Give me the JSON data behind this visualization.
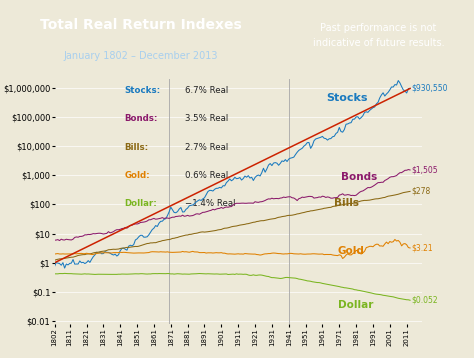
{
  "title": "Total Real Return Indexes",
  "subtitle": "January 1802 – December 2013",
  "disclaimer": "Past performance is not\nindicative of future results.",
  "years_start": 1802,
  "years_end": 2013,
  "legend_entries": [
    {
      "label": "Stocks:",
      "rate": "6.7% Real",
      "color": "#1a7abf"
    },
    {
      "label": "Bonds:",
      "rate": "3.5% Real",
      "color": "#8b1a6b"
    },
    {
      "label": "Bills:",
      "rate": "2.7% Real",
      "color": "#8b6914"
    },
    {
      "label": "Gold:",
      "rate": "0.6% Real",
      "color": "#e08000"
    },
    {
      "label": "Dollar:",
      "rate": "−1.4% Real",
      "color": "#7ab520"
    }
  ],
  "series": {
    "stocks": {
      "color": "#1a7abf",
      "end_value": "$930,550"
    },
    "stocks_trend": {
      "color": "#cc2200"
    },
    "bonds": {
      "color": "#8b1a6b",
      "end_value": "$1,505"
    },
    "bills": {
      "color": "#8b6914",
      "end_value": "$278"
    },
    "gold": {
      "color": "#e08000",
      "end_value": "$3.21"
    },
    "dollar": {
      "color": "#7ab520",
      "end_value": "$0.052"
    }
  },
  "vlines": [
    1870,
    1941
  ],
  "bg_color": "#ede9d8",
  "chart_bg": "#ede9d8",
  "header_bg": "#1a4a8a",
  "header_right_bg": "#2860a8",
  "tick_years": [
    1802,
    1811,
    1821,
    1831,
    1841,
    1851,
    1861,
    1871,
    1881,
    1891,
    1901,
    1911,
    1921,
    1931,
    1941,
    1951,
    1961,
    1971,
    1981,
    1991,
    2001,
    2011
  ],
  "ylim_low": 0.008,
  "ylim_high": 2000000,
  "xlim_low": 1802,
  "xlim_high": 2020
}
